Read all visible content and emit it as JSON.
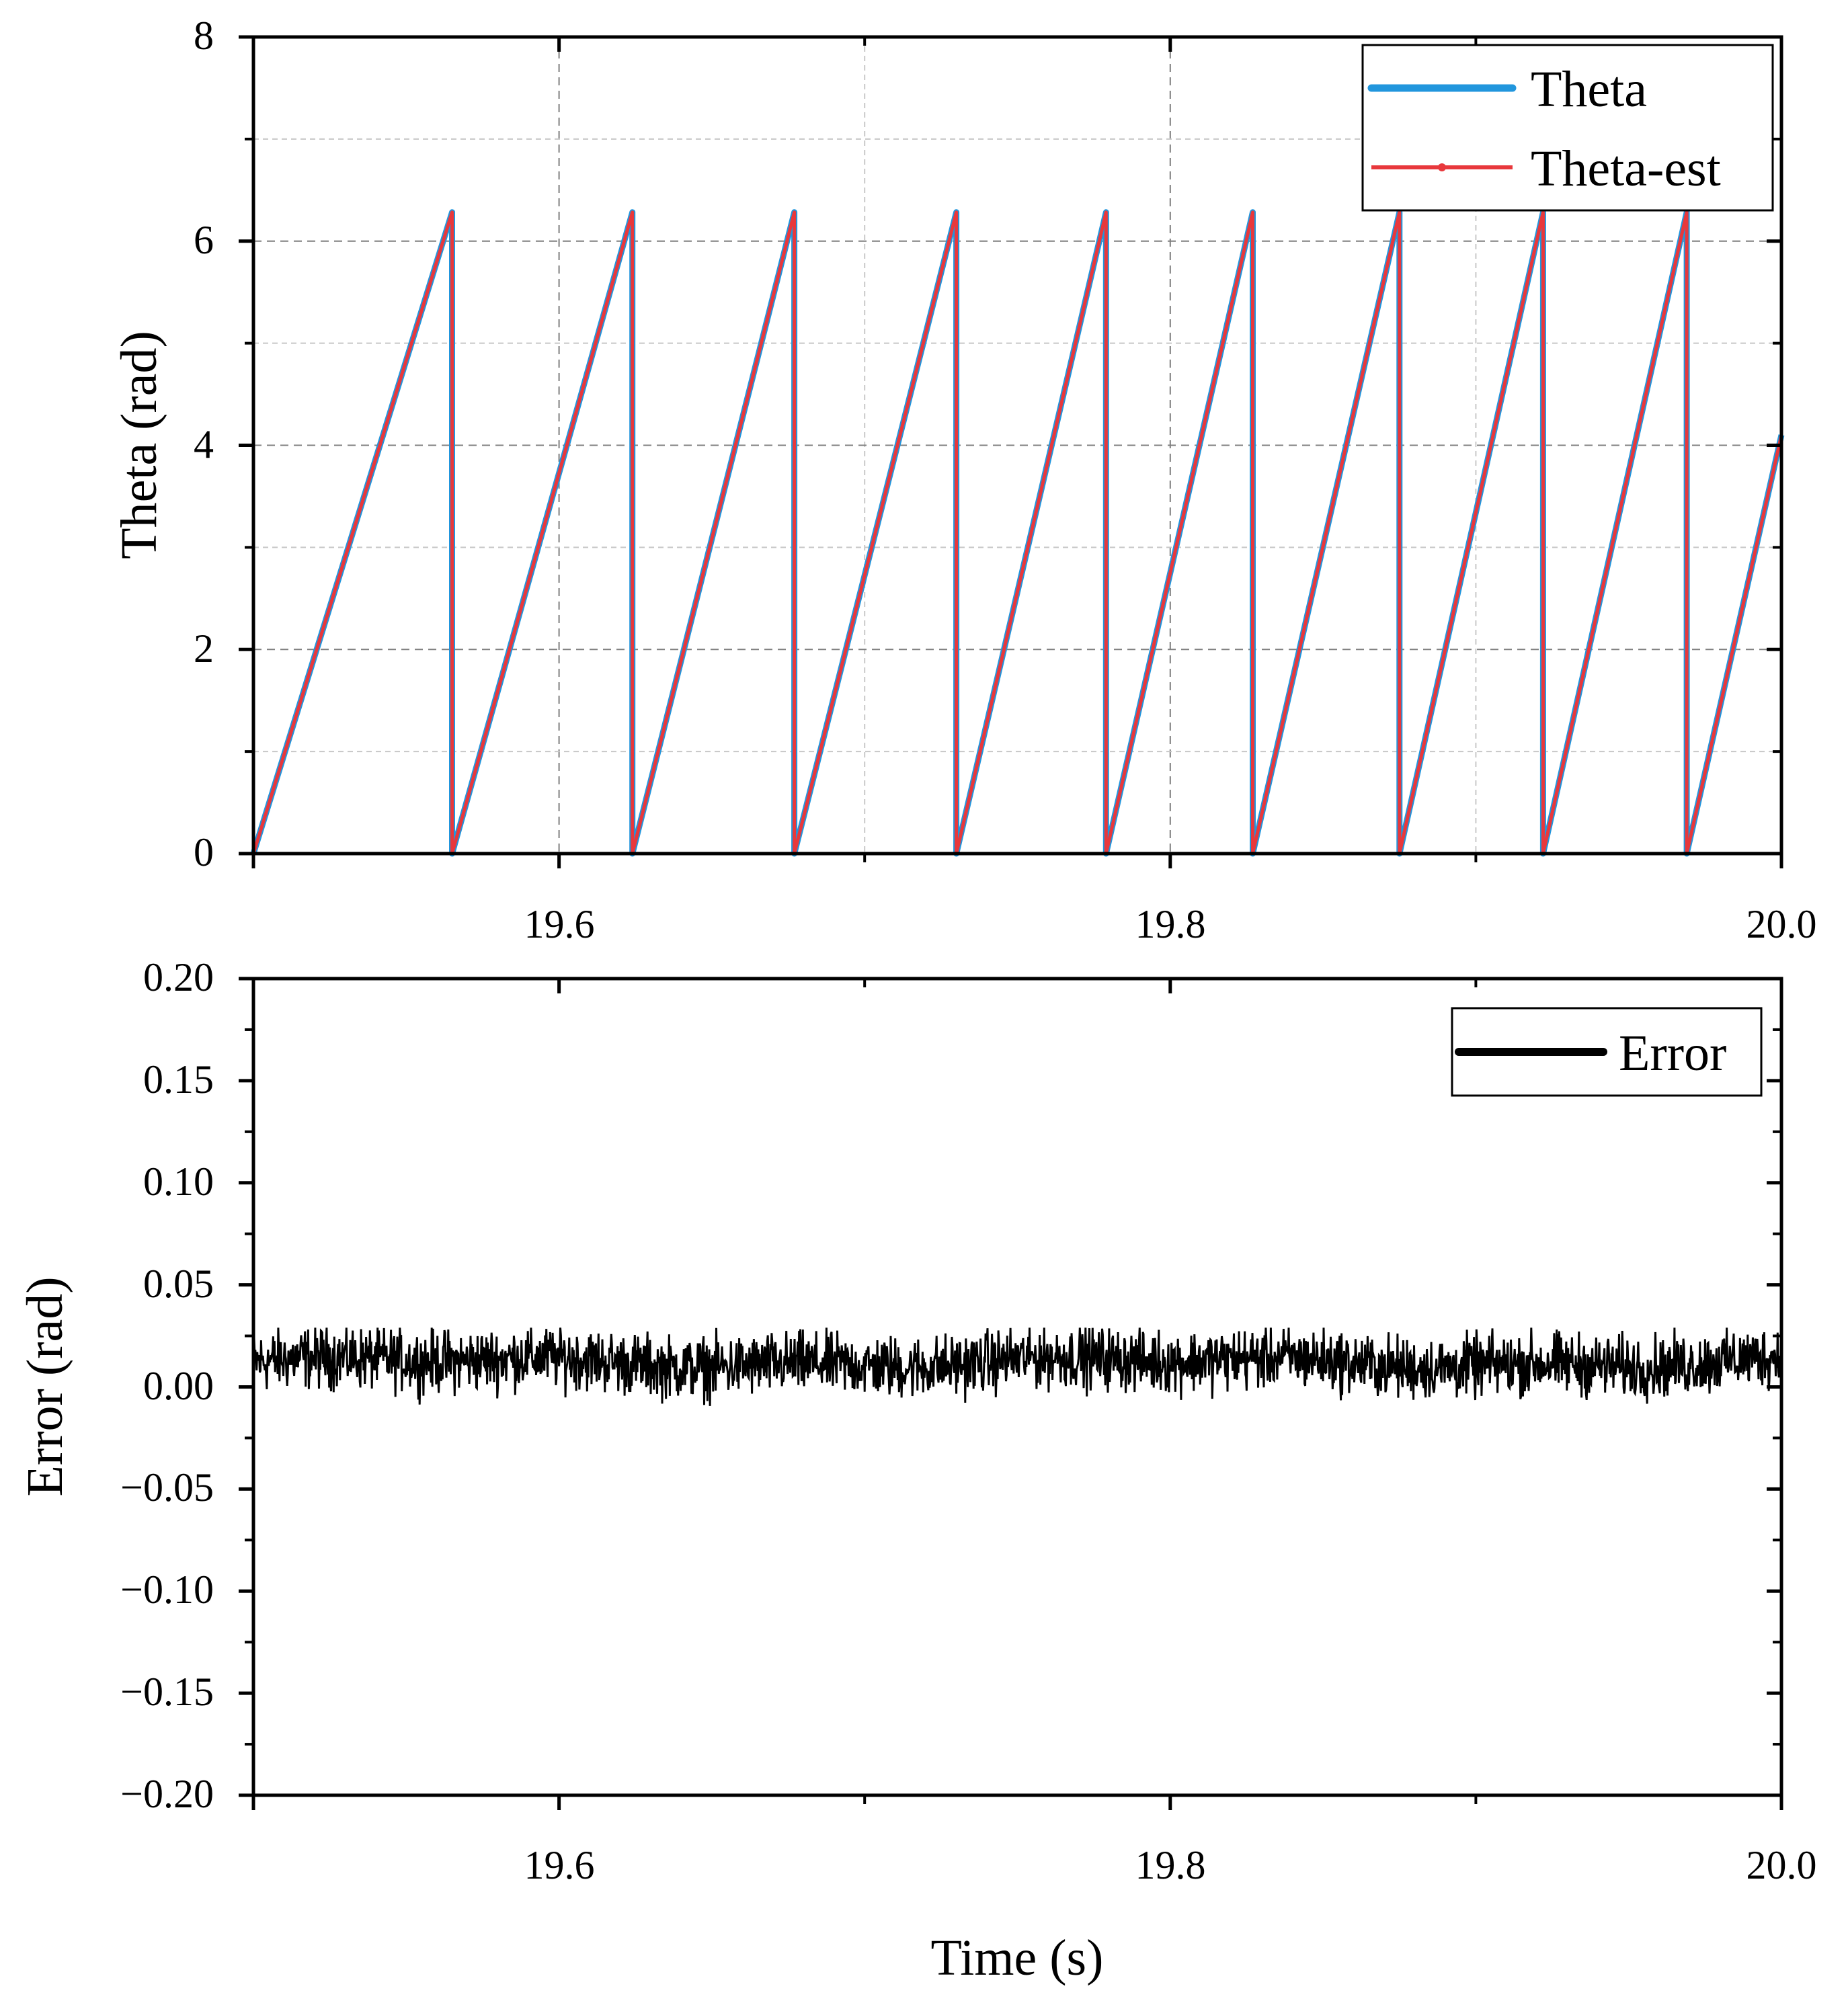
{
  "colors": {
    "theta": "#2196dd",
    "theta_est": "#e8383c",
    "error": "#000000",
    "axis": "#000000",
    "grid_major": "#7f7f7f",
    "grid_minor": "#c8c8c8"
  },
  "chart_data": [
    {
      "type": "line",
      "title": "",
      "xlabel": "",
      "ylabel": "Theta (rad)",
      "xlim": [
        19.5,
        20.0
      ],
      "ylim": [
        0,
        8
      ],
      "grid": true,
      "x_ticks": [
        "19.6",
        "19.8",
        "20.0"
      ],
      "y_ticks": [
        "0",
        "2",
        "4",
        "6",
        "8"
      ],
      "legend": {
        "placement": "top-right",
        "entries": [
          "Theta",
          "Theta-est"
        ]
      },
      "wrap_value": 6.283,
      "wrap_times": [
        19.565,
        19.624,
        19.677,
        19.73,
        19.779,
        19.827,
        19.875,
        19.922,
        19.969
      ],
      "start": {
        "x": 19.5,
        "y": 0
      },
      "end": {
        "x": 20.0,
        "y": 4.1
      },
      "series": [
        {
          "name": "Theta",
          "color_key": "theta",
          "description": "sawtooth 0 to 2pi"
        },
        {
          "name": "Theta-est",
          "color_key": "theta_est",
          "description": "sawtooth 0 to 2pi, overlaps Theta"
        }
      ]
    },
    {
      "type": "line",
      "title": "",
      "xlabel": "Time (s)",
      "ylabel": "Error (rad)",
      "xlim": [
        19.5,
        20.0
      ],
      "ylim": [
        -0.2,
        0.2
      ],
      "grid": false,
      "x_ticks": [
        "19.6",
        "19.8",
        "20.0"
      ],
      "y_ticks": [
        "0.20",
        "0.15",
        "0.10",
        "0.05",
        "0.00",
        "−0.05",
        "−0.10",
        "−0.15",
        "−0.20"
      ],
      "legend": {
        "placement": "top-right",
        "entries": [
          "Error"
        ]
      },
      "series": [
        {
          "name": "Error",
          "color_key": "error",
          "mean": 0.012,
          "noise_min": -0.01,
          "noise_max": 0.029
        }
      ]
    }
  ]
}
